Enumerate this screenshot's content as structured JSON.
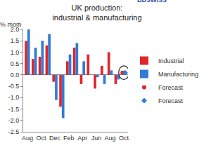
{
  "chart_data": {
    "type": "bar",
    "title": "UK production:\nindustrial & manufacturing",
    "ylabel": "% mom",
    "annotations": [
      "BDSWISS"
    ],
    "categories": [
      "Aug",
      null,
      "Oct",
      null,
      "Dec",
      null,
      "Feb",
      null,
      "Apr",
      null,
      "Jun",
      null,
      "Aug",
      null,
      "Oct"
    ],
    "ylim": [
      -2.5,
      2.0
    ],
    "yticks": [
      -2.5,
      {
        "value": -2,
        "label": "-2.0"
      },
      -1.5,
      {
        "value": -1,
        "label": "-1.0"
      },
      -0.5,
      {
        "value": 0,
        "label": "0.0"
      },
      0.5,
      {
        "value": 1,
        "label": "1.0"
      },
      1.5,
      {
        "value": 2,
        "label": "2.0"
      }
    ],
    "grid": false,
    "legend": "right",
    "series": [
      {
        "name": "Industrial",
        "type": "bar",
        "color": "#e3242b",
        "values": [
          1.5,
          0.7,
          0.8,
          1.3,
          -0.3,
          -1.4,
          0.6,
          1.2,
          -0.4,
          0.9,
          -0.6,
          0.4,
          1.0,
          -0.4,
          null
        ]
      },
      {
        "name": "Manufacturing",
        "type": "bar",
        "color": "#2f7bd6",
        "values": [
          2.0,
          1.2,
          1.5,
          1.8,
          -1.1,
          -1.9,
          0.9,
          1.4,
          0.6,
          0.0,
          -0.1,
          -0.4,
          0.2,
          -0.2,
          null
        ]
      },
      {
        "name": "Forecast",
        "type": "scatter",
        "marker": "circle",
        "color": "#e3242b",
        "values": [
          null,
          null,
          null,
          null,
          null,
          null,
          null,
          null,
          null,
          null,
          null,
          null,
          null,
          null,
          0.1
        ]
      },
      {
        "name": "Forecast",
        "type": "scatter",
        "marker": "diamond",
        "color": "#2f7bd6",
        "values": [
          null,
          null,
          null,
          null,
          null,
          null,
          null,
          null,
          null,
          null,
          null,
          null,
          null,
          null,
          0.1
        ]
      }
    ]
  }
}
